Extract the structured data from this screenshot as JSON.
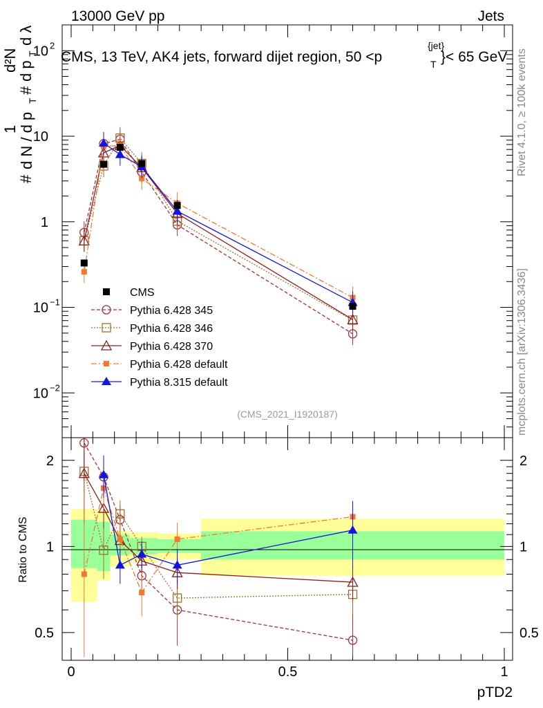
{
  "header": {
    "energy": "13000 GeV pp",
    "process": "Jets",
    "side_label_rivet": "Rivet 4.1.0, ≥ 100k events",
    "side_label_site": "mcplots.cern.ch [arXiv:1306.3436]",
    "analysis_id": "(CMS_2021_I1920187)"
  },
  "chart_data": {
    "type": "line",
    "title": "CMS, 13 TeV, AK4 jets, forward dijet region, 50 <p_T^{jet}< 65 GeV",
    "title_parts": {
      "main": "CMS, 13 TeV, AK4 jets, forward dijet region, 50 <p",
      "sup": "{jet}",
      "sub": "T",
      "end": "}< 65 GeV"
    },
    "xlabel": "pTD2",
    "ylabel": "1/dN/dp_T # d²N / dp_T dλ",
    "ratio_ylabel": "Ratio to CMS",
    "xlim": [
      0,
      1
    ],
    "ylim": [
      0.003,
      200
    ],
    "ratio_ylim": [
      0.4,
      2.4
    ],
    "x_ticks": [
      "0",
      "0.5",
      "1"
    ],
    "y_ticks": [
      {
        "value": 100,
        "base": "10",
        "exp": "2"
      },
      {
        "value": 10,
        "base": "10",
        "exp": ""
      },
      {
        "value": 1,
        "base": "1",
        "exp": ""
      },
      {
        "value": 0.1,
        "base": "10",
        "exp": "−1"
      },
      {
        "value": 0.01,
        "base": "10",
        "exp": "−2"
      }
    ],
    "ratio_ticks": [
      {
        "value": 2,
        "label": "2"
      },
      {
        "value": 1,
        "label": "1"
      },
      {
        "value": 0.5,
        "label": "0.5"
      }
    ],
    "data_series": {
      "name": "CMS",
      "x": [
        0.03,
        0.075,
        0.113,
        0.163,
        0.245,
        0.65
      ],
      "y": [
        0.33,
        4.7,
        7.4,
        4.8,
        1.55,
        0.103
      ],
      "band_x": [
        0,
        0.06,
        0.09,
        0.135,
        0.2,
        0.3,
        1
      ],
      "band_inner": [
        [
          0.84,
          1.24
        ],
        [
          0.82,
          1.22
        ],
        [
          0.93,
          1.1
        ],
        [
          0.94,
          1.07
        ],
        [
          0.95,
          1.06
        ],
        [
          0.9,
          1.13
        ]
      ],
      "band_outer": [
        [
          0.64,
          1.35
        ],
        [
          0.76,
          1.34
        ],
        [
          0.85,
          1.13
        ],
        [
          0.88,
          1.12
        ],
        [
          0.9,
          1.11
        ],
        [
          0.79,
          1.25
        ]
      ]
    },
    "series": [
      {
        "name": "Pythia 6.428 345",
        "color": "#a0303a",
        "dash": "5,3",
        "marker": "circle",
        "y": [
          0.75,
          8.2,
          9.2,
          3.8,
          0.92,
          0.049
        ],
        "ratio": [
          2.3,
          1.75,
          1.24,
          0.79,
          0.6,
          0.47
        ],
        "ratio_err": [
          0.45,
          0.2,
          0.15,
          0.08,
          0.15,
          0.3
        ]
      },
      {
        "name": "Pythia 6.428 346",
        "color": "#a0702a",
        "dash": "2,2",
        "marker": "square",
        "y": [
          0.6,
          4.5,
          9.5,
          4.8,
          1.02,
          0.071
        ],
        "ratio": [
          1.83,
          0.97,
          1.3,
          1.0,
          0.66,
          0.68
        ],
        "ratio_err": [
          0.3,
          0.2,
          0.15,
          0.08,
          0.1,
          0.1
        ]
      },
      {
        "name": "Pythia 6.428 370",
        "color": "#8c1c1c",
        "dash": "",
        "marker": "triangle-open",
        "y": [
          0.6,
          6.4,
          7.8,
          4.3,
          1.25,
          0.072
        ],
        "ratio": [
          1.8,
          1.36,
          1.05,
          0.89,
          0.81,
          0.75
        ],
        "ratio_err": [
          0.6,
          0.2,
          0.12,
          0.08,
          0.1,
          0.1
        ]
      },
      {
        "name": "Pythia 6.428 default",
        "color": "#f07830",
        "dash": "8,3,2,3",
        "marker": "square-filled",
        "y": [
          0.26,
          7.6,
          7.8,
          3.2,
          1.65,
          0.13
        ],
        "ratio": [
          0.8,
          1.6,
          1.06,
          0.69,
          1.06,
          1.27
        ],
        "ratio_err": [
          0.9,
          0.25,
          0.18,
          0.12,
          0.15,
          0.15
        ]
      },
      {
        "name": "Pythia 8.315 default",
        "color": "#1414dc",
        "dash": "",
        "marker": "triangle-filled",
        "y": [
          null,
          8.3,
          6.1,
          4.4,
          1.33,
          0.114
        ],
        "ratio": [
          null,
          1.78,
          0.86,
          0.94,
          0.86,
          1.14
        ],
        "ratio_err": [
          null,
          0.3,
          0.12,
          0.1,
          0.12,
          0.3
        ]
      }
    ],
    "legend_position": "center-left"
  }
}
